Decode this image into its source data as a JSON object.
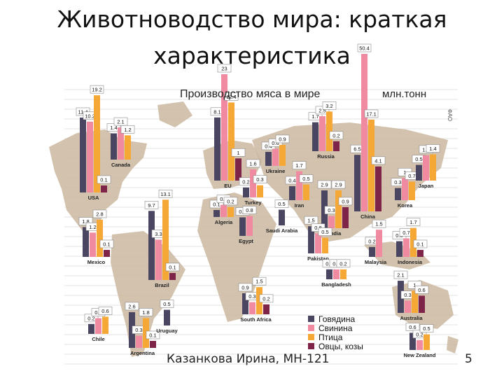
{
  "slide": {
    "title_line1": "Животноводство мира: краткая",
    "title_line2": "характеристика",
    "footer": "Казанкова Ирина, МН-121",
    "page_number": "5"
  },
  "chart_data": {
    "type": "bar",
    "title": "Производство мяса в мире",
    "unit": "млн.тонн",
    "source_tag": "ФАО",
    "colors": {
      "beef": "#4a4560",
      "pork": "#f08aa0",
      "poultry": "#f6a836",
      "sheep": "#7d2448",
      "land": "#cbb8a0",
      "grid": "#e3e3e3"
    },
    "series": [
      {
        "key": "beef",
        "name": "Говядина"
      },
      {
        "key": "pork",
        "name": "Свинина"
      },
      {
        "key": "poultry",
        "name": "Птица"
      },
      {
        "key": "sheep",
        "name": "Овцы, козы"
      }
    ],
    "countries": [
      {
        "name": "USA",
        "values": [
          11.4,
          10.2,
          19.2,
          0.1
        ]
      },
      {
        "name": "Canada",
        "values": [
          1.4,
          2.1,
          1.2,
          null
        ]
      },
      {
        "name": "Mexico",
        "values": [
          1.8,
          1.2,
          2.8,
          0.1
        ]
      },
      {
        "name": "Brazil",
        "values": [
          9.7,
          3.3,
          13.1,
          0.1
        ]
      },
      {
        "name": "Chile",
        "values": [
          0.2,
          0.5,
          0.6,
          null
        ]
      },
      {
        "name": "Argentina",
        "values": [
          2.6,
          0.3,
          1.8,
          0.1
        ]
      },
      {
        "name": "Uruguay",
        "values": [
          0.5,
          null,
          null,
          null
        ]
      },
      {
        "name": "EU",
        "values": [
          8.1,
          23.0,
          12.4,
          1.0
        ]
      },
      {
        "name": "Ukraine",
        "values": [
          0.4,
          0.6,
          0.9,
          null
        ]
      },
      {
        "name": "Turkey",
        "values": [
          0.2,
          1.6,
          0.3,
          null
        ]
      },
      {
        "name": "Algeria",
        "values": [
          0.1,
          0.3,
          0.2,
          null
        ]
      },
      {
        "name": "Egypt",
        "values": [
          0.7,
          0.8,
          null,
          null
        ]
      },
      {
        "name": "Saudi Arabia",
        "values": [
          0.5,
          null,
          null,
          null
        ]
      },
      {
        "name": "Iran",
        "values": [
          0.4,
          1.7,
          0.5,
          null
        ]
      },
      {
        "name": "Russia",
        "values": [
          1.7,
          2.5,
          3.2,
          0.2
        ]
      },
      {
        "name": "India",
        "values": [
          2.9,
          0.3,
          2.9,
          0.9
        ]
      },
      {
        "name": "Pakistan",
        "values": [
          1.5,
          0.8,
          0.5,
          null
        ]
      },
      {
        "name": "Bangladesh",
        "values": [
          0.2,
          0.2,
          0.2,
          null
        ]
      },
      {
        "name": "China",
        "values": [
          6.5,
          50.4,
          17.1,
          4.1
        ]
      },
      {
        "name": "Korea",
        "values": [
          0.3,
          1.0,
          0.7,
          null
        ]
      },
      {
        "name": "Japan",
        "values": [
          0.5,
          1.3,
          1.4,
          null
        ]
      },
      {
        "name": "Malaysia",
        "values": [
          0.2,
          1.5,
          null,
          null
        ]
      },
      {
        "name": "Indonesia",
        "values": [
          0.5,
          0.7,
          1.7,
          0.1
        ]
      },
      {
        "name": "South Africa",
        "values": [
          0.9,
          0.3,
          1.5,
          0.2
        ]
      },
      {
        "name": "Australia",
        "values": [
          2.1,
          0.3,
          1.0,
          0.6
        ]
      },
      {
        "name": "New Zealand",
        "values": [
          0.6,
          0.2,
          0.5,
          null
        ]
      }
    ]
  }
}
